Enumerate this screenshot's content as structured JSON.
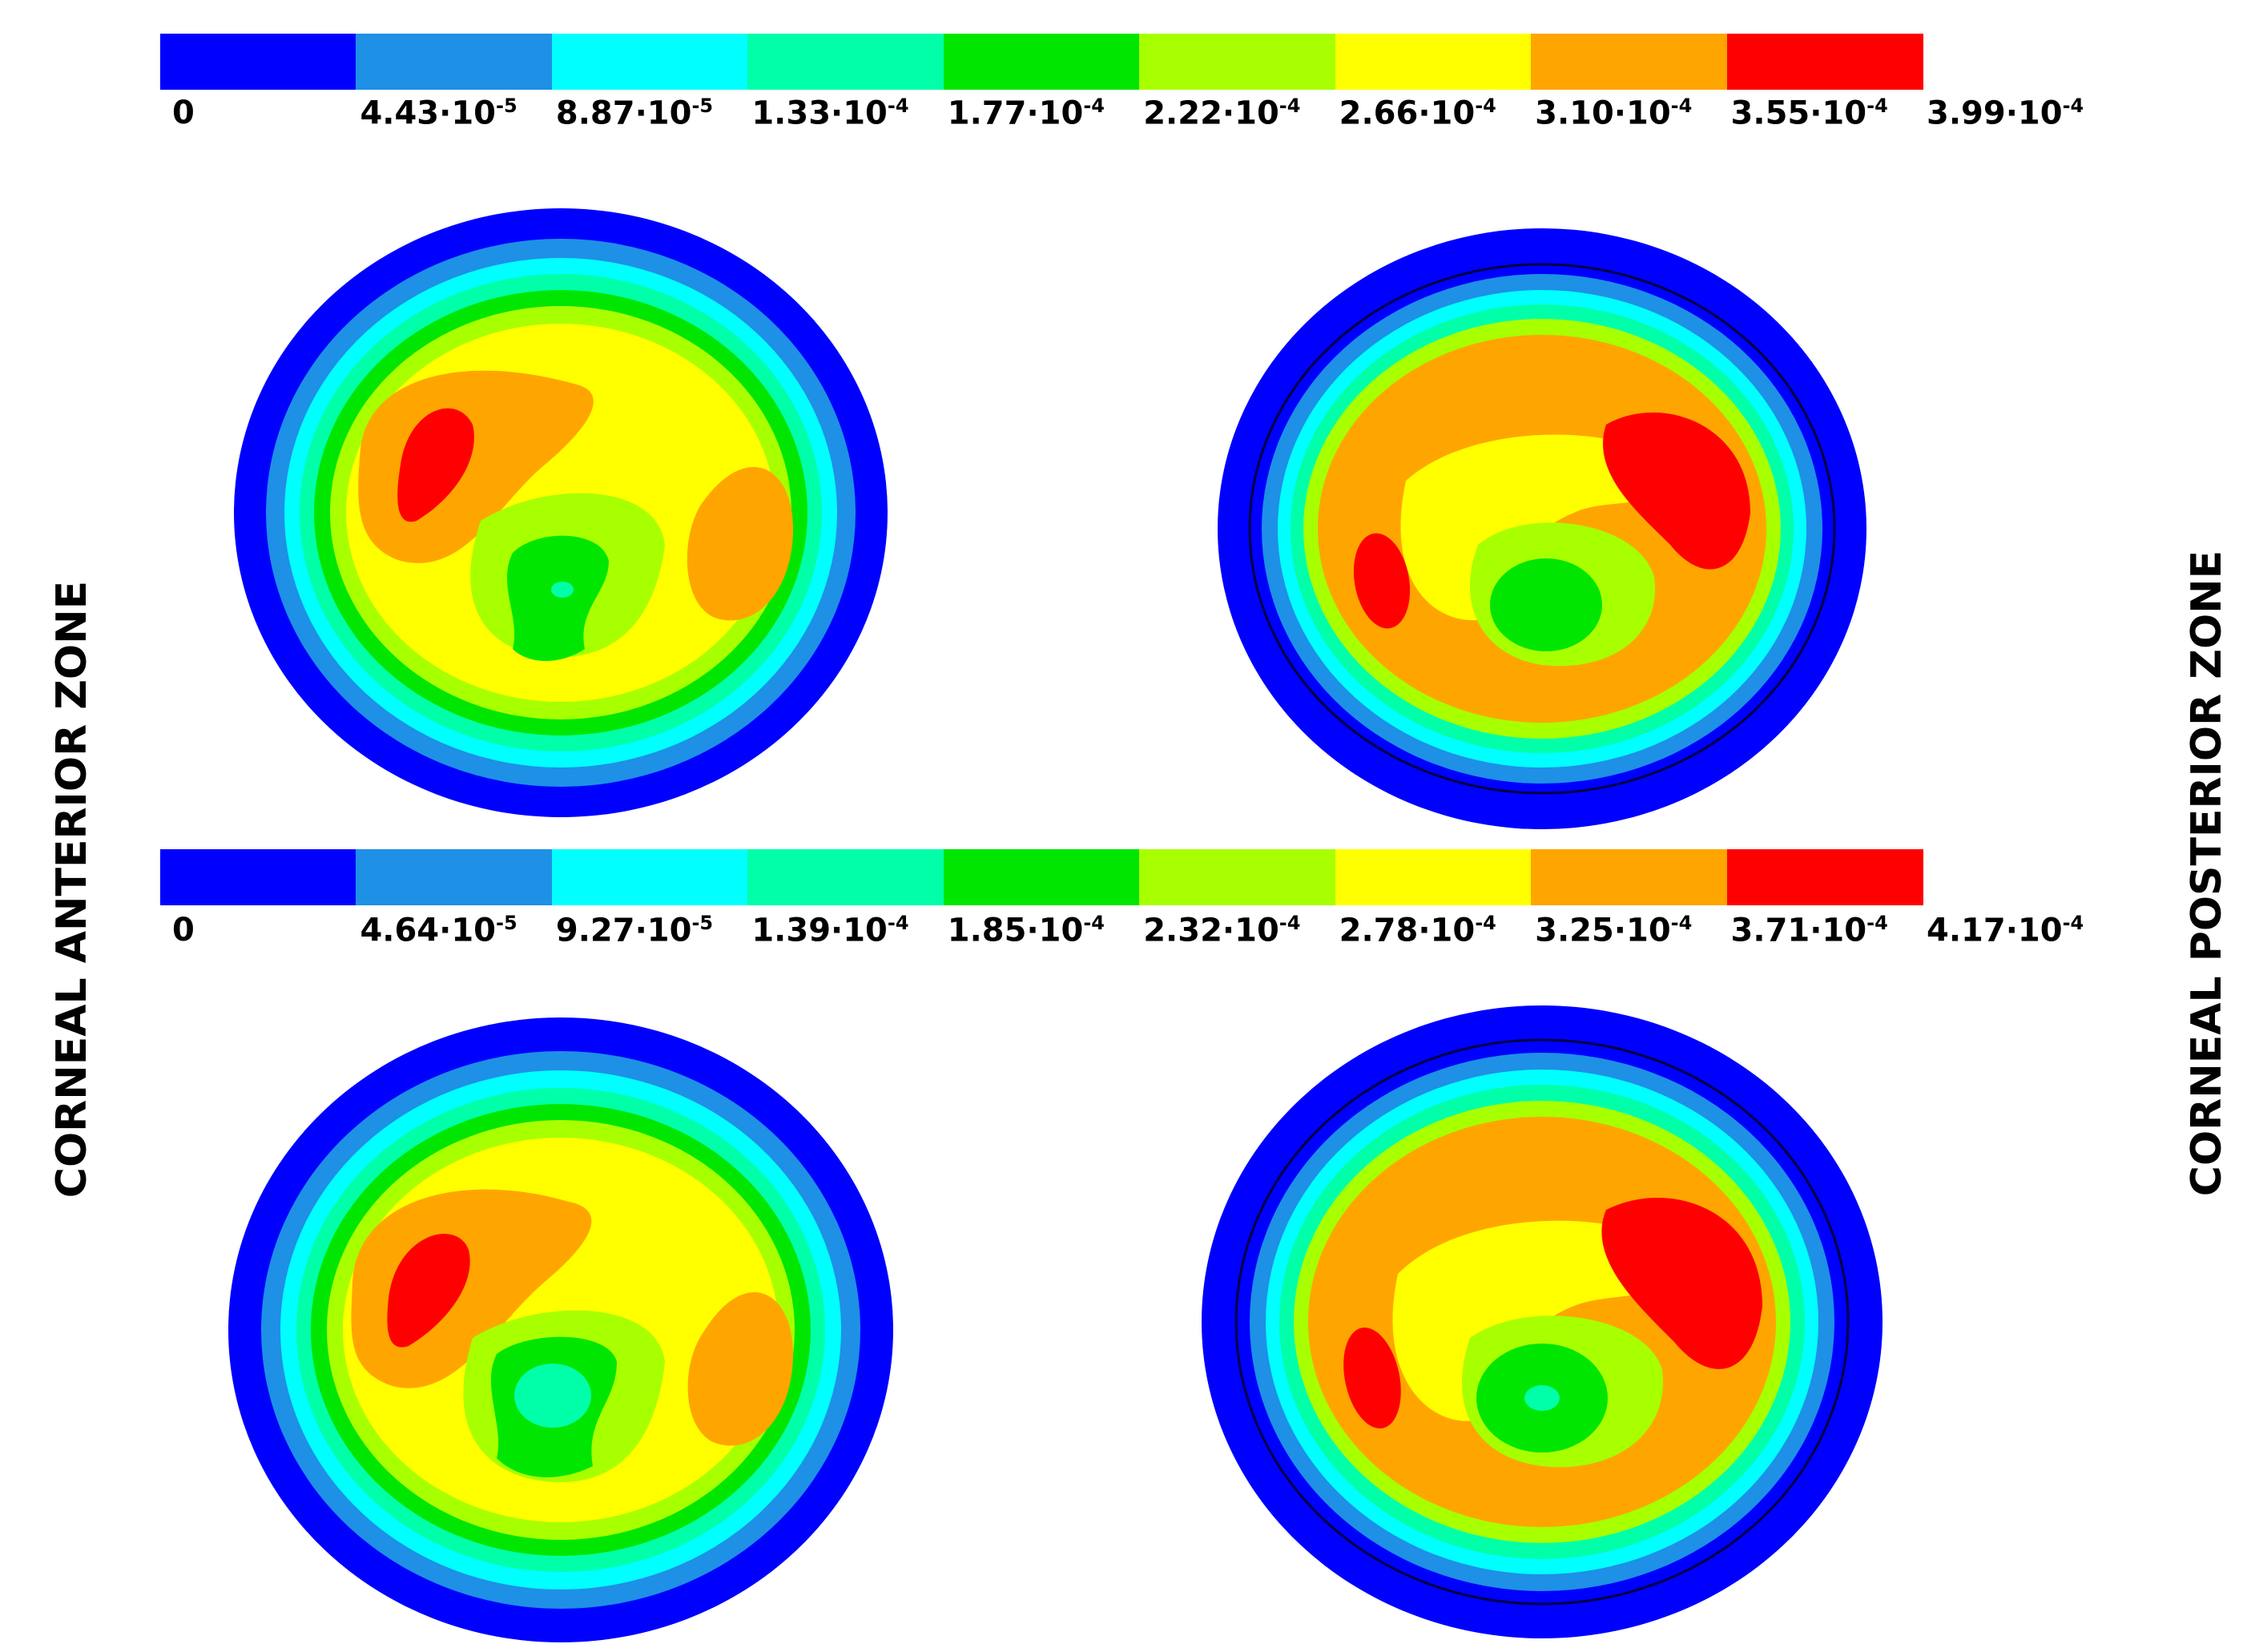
{
  "labels": {
    "left": "CORNEAL ANTERIOR ZONE",
    "right": "CORNEAL  POSTERIOR  ZONE"
  },
  "colorbar_colors": [
    "#0000ff",
    "#1e90e6",
    "#00ffff",
    "#00ffa8",
    "#00e600",
    "#a8ff00",
    "#ffff00",
    "#ffa500",
    "#ff0000"
  ],
  "legends": [
    {
      "ticks": [
        {
          "base": "0",
          "exp": ""
        },
        {
          "base": "4.43·10",
          "exp": "-5"
        },
        {
          "base": "8.87·10",
          "exp": "-5"
        },
        {
          "base": "1.33·10",
          "exp": "-4"
        },
        {
          "base": "1.77·10",
          "exp": "-4"
        },
        {
          "base": "2.22·10",
          "exp": "-4"
        },
        {
          "base": "2.66·10",
          "exp": "-4"
        },
        {
          "base": "3.10·10",
          "exp": "-4"
        },
        {
          "base": "3.55·10",
          "exp": "-4"
        },
        {
          "base": "3.99·10",
          "exp": "-4"
        }
      ]
    },
    {
      "ticks": [
        {
          "base": "0",
          "exp": ""
        },
        {
          "base": "4.64·10",
          "exp": "-5"
        },
        {
          "base": "9.27·10",
          "exp": "-5"
        },
        {
          "base": "1.39·10",
          "exp": "-4"
        },
        {
          "base": "1.85·10",
          "exp": "-4"
        },
        {
          "base": "2.32·10",
          "exp": "-4"
        },
        {
          "base": "2.78·10",
          "exp": "-4"
        },
        {
          "base": "3.25·10",
          "exp": "-4"
        },
        {
          "base": "3.71·10",
          "exp": "-4"
        },
        {
          "base": "4.17·10",
          "exp": "-4"
        }
      ]
    }
  ]
}
